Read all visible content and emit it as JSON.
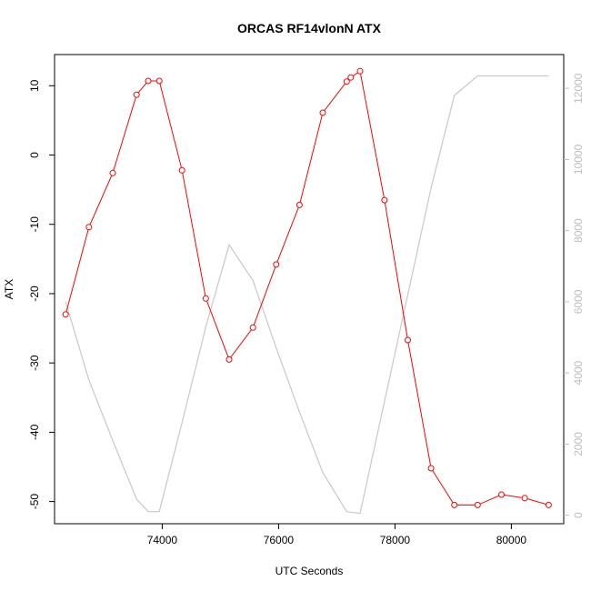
{
  "chart_data": {
    "type": "line",
    "title": "ORCAS RF14vlonN ATX",
    "xlabel": "UTC Seconds",
    "ylabel": "ATX",
    "xlim": [
      72150,
      80900
    ],
    "ylim": [
      -53.2,
      14.5
    ],
    "y2lim": [
      -240,
      12950
    ],
    "x_ticks": [
      74000,
      76000,
      78000,
      80000
    ],
    "x_tick_labels": [
      "74000",
      "76000",
      "78000",
      "80000"
    ],
    "y_ticks": [
      10,
      0,
      -10,
      -20,
      -30,
      -40,
      -50
    ],
    "y_tick_labels": [
      "10",
      "0",
      "-10",
      "-20",
      "-30",
      "-40",
      "-50"
    ],
    "y2_ticks": [
      0,
      2000,
      4000,
      6000,
      8000,
      10000,
      12000
    ],
    "y2_tick_labels": [
      "0",
      "2000",
      "4000",
      "6000",
      "8000",
      "10000",
      "12000"
    ],
    "grid": false,
    "colors": {
      "primary": "#ff0000",
      "secondary": "#c8c8c8",
      "axis": "#000000",
      "axis2": "#bdbdbd"
    },
    "series": [
      {
        "axis": "left",
        "style": "line-with-circles",
        "x": [
          72340,
          72740,
          73150,
          73560,
          73760,
          73950,
          74340,
          74750,
          75150,
          75560,
          75960,
          76360,
          76760,
          77170,
          77240,
          77400,
          77820,
          78220,
          78620,
          79020,
          79420,
          79830,
          80230,
          80640
        ],
        "y": [
          -23.0,
          -10.4,
          -2.6,
          8.7,
          10.7,
          10.7,
          -2.2,
          -20.7,
          -29.5,
          -24.9,
          -15.8,
          -7.2,
          6.1,
          10.6,
          11.2,
          12.1,
          -6.5,
          -26.7,
          -45.2,
          -50.5,
          -50.5,
          -49.0,
          -49.5,
          -50.5
        ]
      },
      {
        "axis": "right",
        "style": "line",
        "x": [
          72340,
          72740,
          73150,
          73560,
          73760,
          73950,
          74340,
          74750,
          75150,
          75560,
          75960,
          76360,
          76760,
          77170,
          77400,
          77820,
          78220,
          78620,
          79020,
          79420,
          79830,
          80230,
          80640
        ],
        "y": [
          6000,
          3800,
          2100,
          450,
          100,
          100,
          2600,
          5300,
          7600,
          6600,
          4700,
          2900,
          1200,
          100,
          50,
          3200,
          6200,
          9200,
          11800,
          12350,
          12350,
          12350,
          12350
        ]
      }
    ]
  }
}
